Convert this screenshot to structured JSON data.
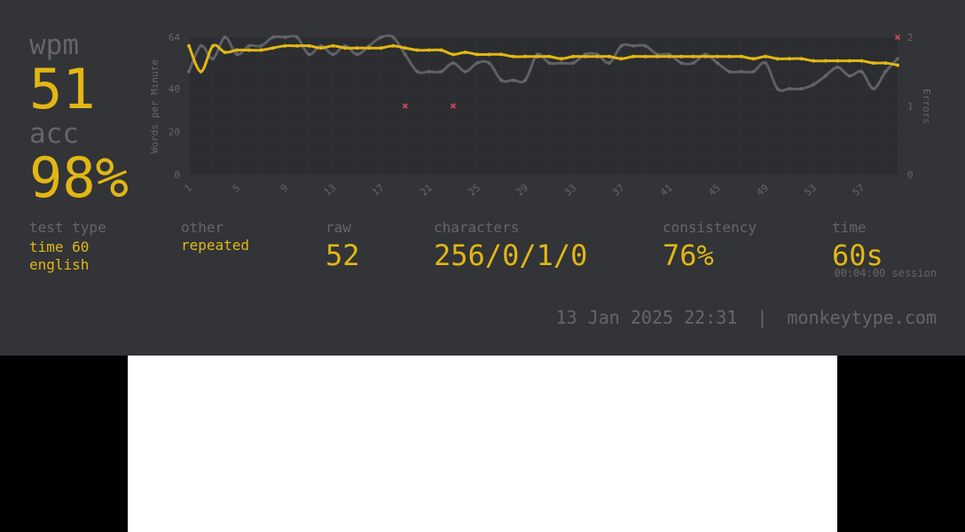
{
  "summary": {
    "wpm_label": "wpm",
    "wpm_value": "51",
    "acc_label": "acc",
    "acc_value": "98%"
  },
  "stats": {
    "test_type_label": "test type",
    "test_type_line1": "time 60",
    "test_type_line2": "english",
    "other_label": "other",
    "other_value": "repeated",
    "raw_label": "raw",
    "raw_value": "52",
    "characters_label": "characters",
    "characters_value": "256/0/1/0",
    "consistency_label": "consistency",
    "consistency_value": "76%",
    "time_label": "time",
    "time_value": "60s",
    "session_value": "00:04:00 session"
  },
  "footer": {
    "date": "13 Jan 2025 22:31",
    "separator": "|",
    "site": "monkeytype.com"
  },
  "colors": {
    "background": "#323437",
    "main": "#e2b714",
    "sub": "#646669",
    "raw_line": "#646669",
    "error": "#ca4754"
  },
  "chart_data": {
    "type": "line",
    "ylabel": "Words per Minute",
    "y2label": "Errors",
    "ylim": [
      0,
      64
    ],
    "y_ticks": [
      "0",
      "20",
      "40",
      "64"
    ],
    "y2lim": [
      0,
      2
    ],
    "y2_ticks": [
      "0",
      "1",
      "2"
    ],
    "x": [
      1,
      2,
      3,
      4,
      5,
      6,
      7,
      8,
      9,
      10,
      11,
      12,
      13,
      14,
      15,
      16,
      17,
      18,
      19,
      20,
      21,
      22,
      23,
      24,
      25,
      26,
      27,
      28,
      29,
      30,
      31,
      32,
      33,
      34,
      35,
      36,
      37,
      38,
      39,
      40,
      41,
      42,
      43,
      44,
      45,
      46,
      47,
      48,
      49,
      50,
      51,
      52,
      53,
      54,
      55,
      56,
      57,
      58,
      59,
      60
    ],
    "x_ticks": [
      "1",
      "5",
      "9",
      "13",
      "17",
      "21",
      "25",
      "29",
      "33",
      "37",
      "41",
      "45",
      "49",
      "53",
      "57"
    ],
    "grid": true,
    "series": [
      {
        "kind": "raw",
        "values": [
          48,
          60,
          54,
          64,
          56,
          60,
          60,
          64,
          64,
          64,
          56,
          60,
          56,
          60,
          56,
          60,
          64,
          64,
          56,
          48,
          48,
          48,
          52,
          48,
          52,
          52,
          44,
          44,
          44,
          56,
          52,
          52,
          52,
          56,
          56,
          52,
          60,
          60,
          60,
          56,
          56,
          52,
          52,
          56,
          52,
          48,
          48,
          48,
          52,
          40,
          40,
          40,
          42,
          46,
          50,
          46,
          48,
          40,
          48,
          54
        ]
      },
      {
        "kind": "wpm",
        "values": [
          60,
          48,
          60,
          57,
          58,
          58,
          58,
          59,
          60,
          60,
          60,
          59,
          60,
          59,
          59,
          59,
          59,
          60,
          59,
          58,
          58,
          58,
          56,
          57,
          56,
          56,
          56,
          55,
          55,
          55,
          55,
          54,
          55,
          55,
          55,
          55,
          54,
          55,
          55,
          55,
          55,
          55,
          55,
          55,
          55,
          55,
          55,
          54,
          55,
          54,
          54,
          54,
          53,
          53,
          53,
          53,
          53,
          52,
          52,
          51
        ]
      },
      {
        "kind": "errors",
        "points": [
          [
            19,
            1
          ],
          [
            23,
            1
          ],
          [
            60,
            2
          ]
        ]
      }
    ]
  }
}
